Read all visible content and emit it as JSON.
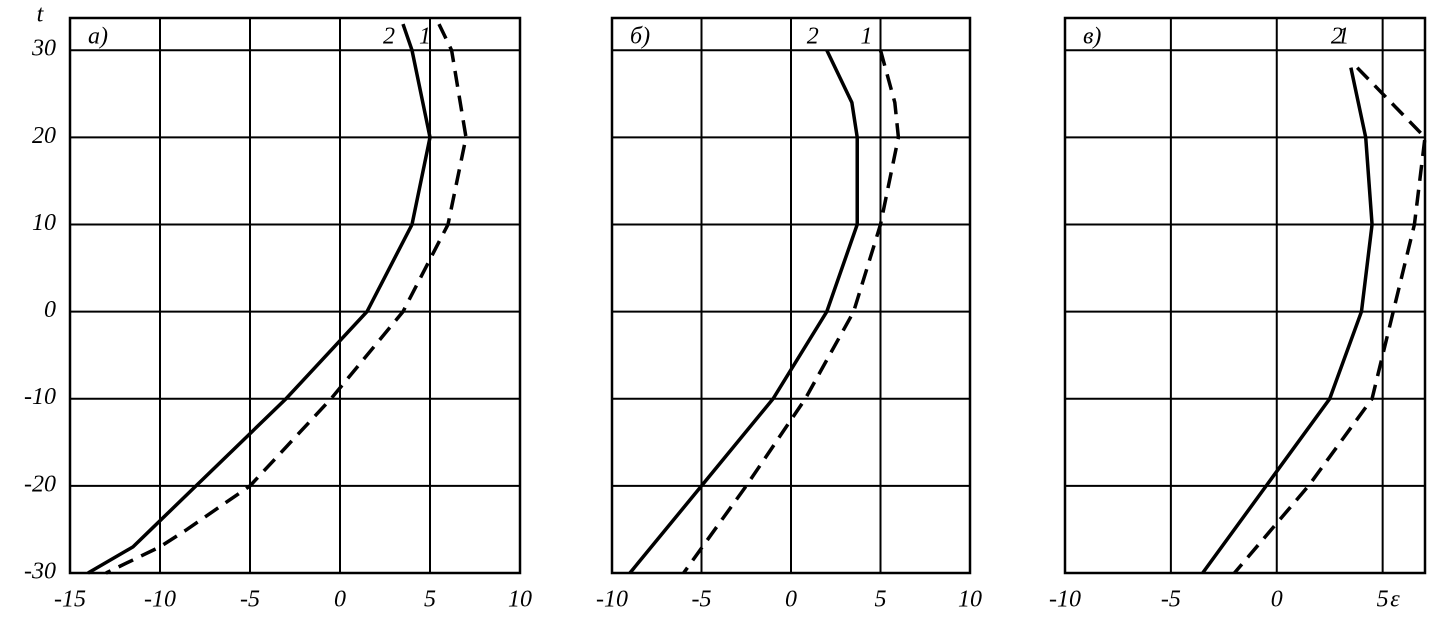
{
  "chart_data": [
    {
      "type": "line",
      "panel_label": "a)",
      "ylabel": "t",
      "ytick_labels": true,
      "y": [
        33,
        30,
        20,
        10,
        0,
        -10,
        -20,
        -25,
        -27,
        -30
      ],
      "series": [
        {
          "name": "2",
          "color": "#000000",
          "dashed": false,
          "values": [
            3.5,
            4,
            5,
            4,
            1.5,
            -3,
            -8,
            -10.5,
            -11.5,
            -14
          ]
        },
        {
          "name": "1",
          "color": "#000000",
          "dashed": true,
          "values": [
            5.5,
            6.2,
            7,
            6,
            3.5,
            -0.5,
            -5,
            -8.5,
            -10,
            -13
          ]
        }
      ],
      "xlim": [
        -15,
        10
      ],
      "xticks": [
        -15,
        -10,
        -5,
        0,
        5,
        10
      ],
      "ylim": [
        -30,
        33.7
      ],
      "yticks": [
        -30,
        -20,
        -10,
        0,
        10,
        20,
        30
      ],
      "grid": true
    },
    {
      "type": "line",
      "panel_label": "б)",
      "ytick_labels": false,
      "y": [
        30,
        24,
        20,
        10,
        0,
        -10,
        -20,
        -30
      ],
      "series": [
        {
          "name": "2",
          "color": "#000000",
          "dashed": false,
          "values": [
            2,
            3.4,
            3.7,
            3.7,
            2,
            -1,
            -5,
            -9
          ]
        },
        {
          "name": "1",
          "color": "#000000",
          "dashed": true,
          "values": [
            5,
            5.8,
            6,
            5,
            3.5,
            0.8,
            -2.5,
            -6
          ]
        }
      ],
      "xlim": [
        -10,
        10
      ],
      "xticks": [
        -10,
        -5,
        0,
        5,
        10
      ],
      "ylim": [
        -30,
        33.7
      ],
      "yticks": [
        -30,
        -20,
        -10,
        0,
        10,
        20,
        30
      ],
      "grid": true
    },
    {
      "type": "line",
      "panel_label": "в)",
      "xlabel": "ε",
      "ytick_labels": false,
      "y": [
        28,
        20,
        10,
        0,
        -10,
        -20,
        -30
      ],
      "series": [
        {
          "name": "2",
          "color": "#000000",
          "dashed": false,
          "values": [
            3.5,
            4.2,
            4.5,
            4,
            2.5,
            -0.5,
            -3.5
          ]
        },
        {
          "name": "1",
          "color": "#000000",
          "dashed": true,
          "values": [
            3.8,
            7,
            6.5,
            5.5,
            4.5,
            1.5,
            -2
          ]
        }
      ],
      "xlim": [
        -10,
        7
      ],
      "xticks": [
        -10,
        -5,
        0,
        5
      ],
      "ylim": [
        -30,
        33.7
      ],
      "yticks": [
        -30,
        -20,
        -10,
        0,
        10,
        20,
        30
      ],
      "grid": true
    }
  ]
}
